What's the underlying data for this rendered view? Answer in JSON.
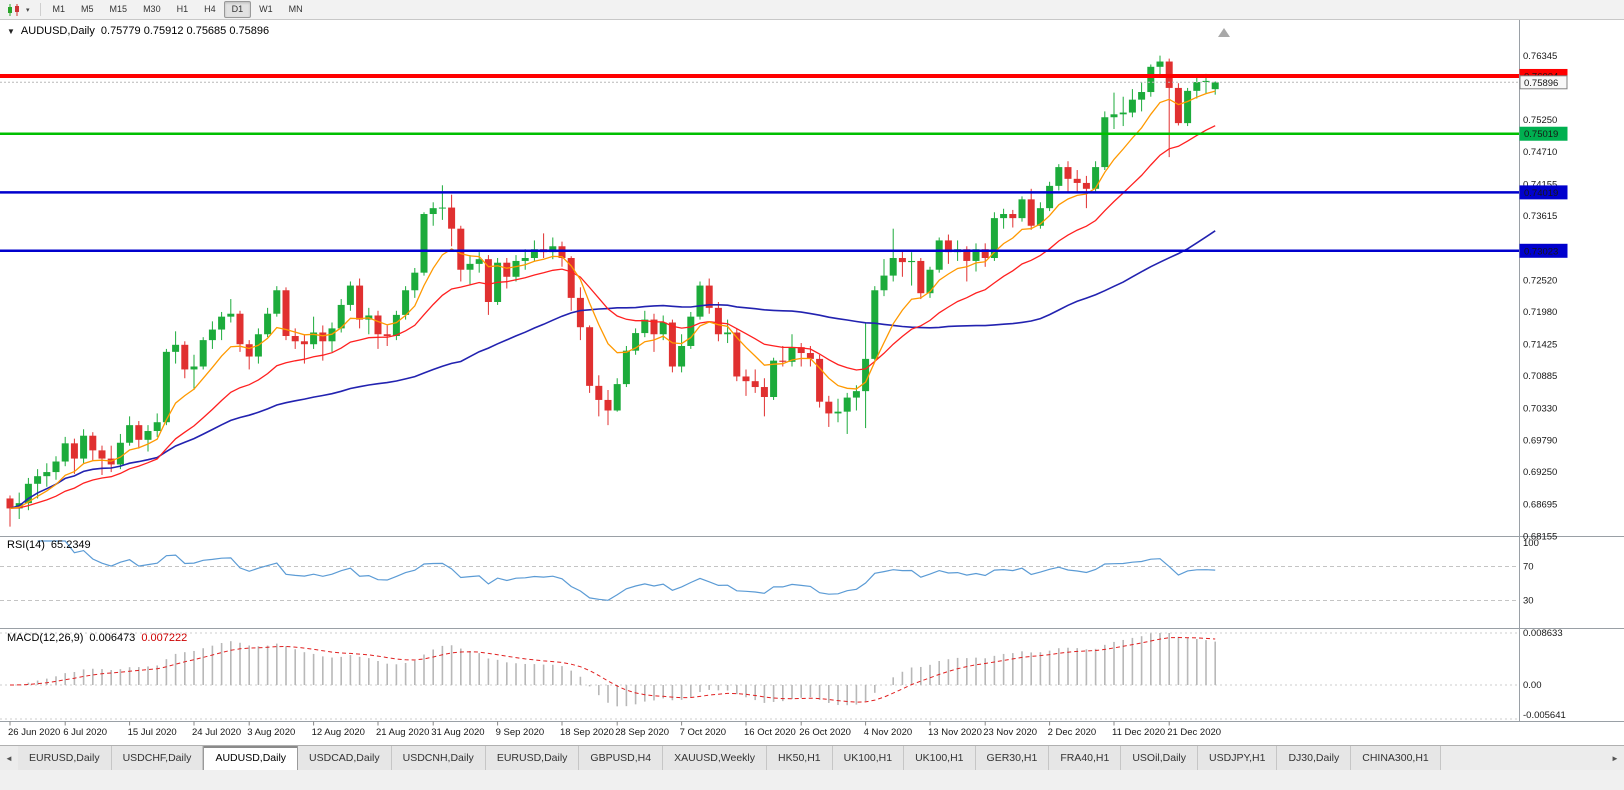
{
  "toolbar": {
    "dropdown_glyph": "▾",
    "timeframes": [
      "M1",
      "M5",
      "M15",
      "M30",
      "H1",
      "H4",
      "D1",
      "W1",
      "MN"
    ],
    "active_timeframe": "D1"
  },
  "chart_header": {
    "dropdown_arrow": "▼",
    "symbol": "AUDUSD,Daily",
    "ohlc": "0.75779 0.75912 0.75685 0.75896"
  },
  "panes": {
    "rsi_label": "RSI(14)",
    "rsi_value": "65.2349",
    "macd_label": "MACD(12,26,9)",
    "macd_main": "0.006473",
    "macd_signal": "0.007222"
  },
  "chart_data": {
    "type": "candlestick",
    "symbol": "AUDUSD",
    "timeframe": "Daily",
    "current_ohlc": [
      0.75779,
      0.75912,
      0.75685,
      0.75896
    ],
    "colors": {
      "bull": "#1cab3b",
      "bear": "#e03030"
    },
    "price_axis": {
      "min": 0.6816,
      "max": 0.7689,
      "labels": [
        "0.76345",
        "0.75250",
        "0.74710",
        "0.74155",
        "0.73615",
        "0.72520",
        "0.71980",
        "0.71425",
        "0.70885",
        "0.70330",
        "0.69790",
        "0.69250",
        "0.68695",
        "0.68155"
      ]
    },
    "badges": [
      {
        "value": 0.76004,
        "label": "0.76004",
        "bg": "#ff0000",
        "fg": "#ffffff"
      },
      {
        "value": 0.75896,
        "label": "0.75896",
        "bg": "#f8f8f8",
        "fg": "#000000",
        "border": "#808080"
      },
      {
        "value": 0.75019,
        "label": "0.75019",
        "bg": "#00b050",
        "fg": "#ffffff"
      },
      {
        "value": 0.74019,
        "label": "0.74019",
        "bg": "#0000cd",
        "fg": "#ffffff"
      },
      {
        "value": 0.73023,
        "label": "0.73023",
        "bg": "#0000cd",
        "fg": "#ffffff"
      }
    ],
    "hlines": [
      {
        "value": 0.76004,
        "color": "#ff0000",
        "width": 4
      },
      {
        "value": 0.75019,
        "color": "#00c000",
        "width": 2.5
      },
      {
        "value": 0.74019,
        "color": "#0000cd",
        "width": 2.5
      },
      {
        "value": 0.73023,
        "color": "#0000cd",
        "width": 2.5
      }
    ],
    "bid": {
      "value": 0.75896,
      "color": "#b8b8b8"
    },
    "moving_averages": [
      {
        "type": "sma",
        "period": 50,
        "color": "#2222b0",
        "width": 1.6
      },
      {
        "type": "ema",
        "period": 20,
        "color": "#ff2020",
        "width": 1.3
      },
      {
        "type": "ema",
        "period": 8,
        "color": "#ff9900",
        "width": 1.3
      }
    ],
    "rsi": {
      "period": 14,
      "current": 65.2349,
      "color": "#5b9bd5",
      "levels": [
        {
          "v": 100,
          "label": "100",
          "line": false
        },
        {
          "v": 70,
          "label": "70",
          "line": true
        },
        {
          "v": 30,
          "label": "30",
          "line": true
        }
      ]
    },
    "macd": {
      "fast": 12,
      "slow": 26,
      "signal": 9,
      "main_current": 0.006473,
      "signal_current": 0.007222,
      "hist_color": "#b8b8b8",
      "signal_color": "#e02020",
      "scale": {
        "max": 0.008633,
        "min": -0.005641
      },
      "axis_labels": [
        {
          "v": 0.008633,
          "label": "0.008633"
        },
        {
          "v": 0,
          "label": "0.00"
        },
        {
          "v": -0.005641,
          "label": "-0.005641"
        }
      ]
    },
    "x_labels": [
      {
        "label": "26 Jun 2020",
        "i": 0
      },
      {
        "label": "6 Jul 2020",
        "i": 6
      },
      {
        "label": "15 Jul 2020",
        "i": 13
      },
      {
        "label": "24 Jul 2020",
        "i": 20
      },
      {
        "label": "3 Aug 2020",
        "i": 26
      },
      {
        "label": "12 Aug 2020",
        "i": 33
      },
      {
        "label": "21 Aug 2020",
        "i": 40
      },
      {
        "label": "31 Aug 2020",
        "i": 46
      },
      {
        "label": "9 Sep 2020",
        "i": 53
      },
      {
        "label": "18 Sep 2020",
        "i": 60
      },
      {
        "label": "28 Sep 2020",
        "i": 66
      },
      {
        "label": "7 Oct 2020",
        "i": 73
      },
      {
        "label": "16 Oct 2020",
        "i": 80
      },
      {
        "label": "26 Oct 2020",
        "i": 86
      },
      {
        "label": "4 Nov 2020",
        "i": 93
      },
      {
        "label": "13 Nov 2020",
        "i": 100
      },
      {
        "label": "23 Nov 2020",
        "i": 106
      },
      {
        "label": "2 Dec 2020",
        "i": 113
      },
      {
        "label": "11 Dec 2020",
        "i": 120
      },
      {
        "label": "21 Dec 2020",
        "i": 126
      }
    ],
    "candles": [
      [
        0.688,
        0.6885,
        0.6832,
        0.6863
      ],
      [
        0.6863,
        0.689,
        0.6845,
        0.6872
      ],
      [
        0.6872,
        0.6915,
        0.686,
        0.6905
      ],
      [
        0.6905,
        0.693,
        0.688,
        0.6918
      ],
      [
        0.6918,
        0.694,
        0.69,
        0.6925
      ],
      [
        0.6925,
        0.6952,
        0.6912,
        0.6943
      ],
      [
        0.6943,
        0.6985,
        0.6935,
        0.6974
      ],
      [
        0.6974,
        0.6982,
        0.6922,
        0.6948
      ],
      [
        0.6948,
        0.6998,
        0.694,
        0.6987
      ],
      [
        0.6987,
        0.6993,
        0.6945,
        0.6962
      ],
      [
        0.6962,
        0.697,
        0.692,
        0.6948
      ],
      [
        0.6948,
        0.697,
        0.6925,
        0.6938
      ],
      [
        0.6938,
        0.699,
        0.693,
        0.6975
      ],
      [
        0.6975,
        0.702,
        0.697,
        0.7005
      ],
      [
        0.7005,
        0.7012,
        0.6965,
        0.698
      ],
      [
        0.698,
        0.7005,
        0.696,
        0.6995
      ],
      [
        0.6995,
        0.7025,
        0.6985,
        0.701
      ],
      [
        0.701,
        0.7135,
        0.7005,
        0.713
      ],
      [
        0.713,
        0.7165,
        0.711,
        0.7142
      ],
      [
        0.7142,
        0.7148,
        0.7085,
        0.71
      ],
      [
        0.71,
        0.7125,
        0.7065,
        0.7105
      ],
      [
        0.7105,
        0.7155,
        0.71,
        0.715
      ],
      [
        0.715,
        0.7182,
        0.7135,
        0.7168
      ],
      [
        0.7168,
        0.7198,
        0.715,
        0.719
      ],
      [
        0.719,
        0.722,
        0.718,
        0.7195
      ],
      [
        0.7195,
        0.72,
        0.713,
        0.7143
      ],
      [
        0.7143,
        0.715,
        0.71,
        0.7122
      ],
      [
        0.7122,
        0.717,
        0.711,
        0.716
      ],
      [
        0.716,
        0.7205,
        0.7155,
        0.7195
      ],
      [
        0.7195,
        0.7242,
        0.719,
        0.7235
      ],
      [
        0.7235,
        0.724,
        0.715,
        0.7157
      ],
      [
        0.7157,
        0.717,
        0.7135,
        0.7148
      ],
      [
        0.7148,
        0.716,
        0.711,
        0.7143
      ],
      [
        0.7143,
        0.719,
        0.7135,
        0.7163
      ],
      [
        0.7163,
        0.7175,
        0.7115,
        0.7148
      ],
      [
        0.7148,
        0.718,
        0.713,
        0.717
      ],
      [
        0.717,
        0.722,
        0.7163,
        0.721
      ],
      [
        0.721,
        0.725,
        0.72,
        0.7243
      ],
      [
        0.7243,
        0.7255,
        0.717,
        0.7185
      ],
      [
        0.7185,
        0.7205,
        0.716,
        0.7192
      ],
      [
        0.7192,
        0.72,
        0.7135,
        0.716
      ],
      [
        0.716,
        0.7175,
        0.714,
        0.7157
      ],
      [
        0.7157,
        0.72,
        0.715,
        0.7193
      ],
      [
        0.7193,
        0.7242,
        0.7185,
        0.7235
      ],
      [
        0.7235,
        0.7273,
        0.7222,
        0.7265
      ],
      [
        0.7265,
        0.7368,
        0.726,
        0.7365
      ],
      [
        0.7365,
        0.7385,
        0.7345,
        0.7375
      ],
      [
        0.7375,
        0.7414,
        0.7355,
        0.7376
      ],
      [
        0.7376,
        0.7398,
        0.731,
        0.734
      ],
      [
        0.734,
        0.7345,
        0.725,
        0.727
      ],
      [
        0.727,
        0.7295,
        0.7245,
        0.728
      ],
      [
        0.728,
        0.73,
        0.7265,
        0.7288
      ],
      [
        0.7288,
        0.7295,
        0.7193,
        0.7215
      ],
      [
        0.7215,
        0.729,
        0.721,
        0.7282
      ],
      [
        0.7282,
        0.729,
        0.7238,
        0.7258
      ],
      [
        0.7258,
        0.7295,
        0.725,
        0.7285
      ],
      [
        0.7285,
        0.7305,
        0.727,
        0.729
      ],
      [
        0.729,
        0.732,
        0.7285,
        0.7305
      ],
      [
        0.7305,
        0.7332,
        0.729,
        0.73
      ],
      [
        0.73,
        0.7325,
        0.7288,
        0.731
      ],
      [
        0.731,
        0.7318,
        0.7275,
        0.729
      ],
      [
        0.729,
        0.7293,
        0.72,
        0.7222
      ],
      [
        0.7222,
        0.724,
        0.715,
        0.7172
      ],
      [
        0.7172,
        0.7175,
        0.706,
        0.7072
      ],
      [
        0.7072,
        0.709,
        0.702,
        0.7048
      ],
      [
        0.7048,
        0.7065,
        0.7005,
        0.703
      ],
      [
        0.703,
        0.7085,
        0.7028,
        0.7075
      ],
      [
        0.7075,
        0.714,
        0.707,
        0.7132
      ],
      [
        0.7132,
        0.717,
        0.7125,
        0.7162
      ],
      [
        0.7162,
        0.72,
        0.7155,
        0.7185
      ],
      [
        0.7185,
        0.7195,
        0.713,
        0.716
      ],
      [
        0.716,
        0.7192,
        0.715,
        0.718
      ],
      [
        0.718,
        0.7185,
        0.7095,
        0.7105
      ],
      [
        0.7105,
        0.716,
        0.7095,
        0.714
      ],
      [
        0.714,
        0.7198,
        0.7135,
        0.719
      ],
      [
        0.719,
        0.725,
        0.7185,
        0.7243
      ],
      [
        0.7243,
        0.7255,
        0.7195,
        0.7205
      ],
      [
        0.7205,
        0.7215,
        0.7148,
        0.716
      ],
      [
        0.716,
        0.7185,
        0.7145,
        0.7163
      ],
      [
        0.7163,
        0.717,
        0.708,
        0.7088
      ],
      [
        0.7088,
        0.71,
        0.7055,
        0.708
      ],
      [
        0.708,
        0.71,
        0.706,
        0.707
      ],
      [
        0.707,
        0.7085,
        0.702,
        0.7053
      ],
      [
        0.7053,
        0.712,
        0.7048,
        0.7115
      ],
      [
        0.7115,
        0.714,
        0.7105,
        0.7113
      ],
      [
        0.7113,
        0.716,
        0.7105,
        0.7138
      ],
      [
        0.7138,
        0.7145,
        0.7105,
        0.7128
      ],
      [
        0.7128,
        0.714,
        0.7105,
        0.7118
      ],
      [
        0.7118,
        0.7125,
        0.7035,
        0.7045
      ],
      [
        0.7045,
        0.7055,
        0.7002,
        0.7025
      ],
      [
        0.7025,
        0.705,
        0.701,
        0.7028
      ],
      [
        0.7028,
        0.706,
        0.699,
        0.7052
      ],
      [
        0.7052,
        0.7073,
        0.703,
        0.7063
      ],
      [
        0.7063,
        0.718,
        0.7,
        0.7118
      ],
      [
        0.7118,
        0.7242,
        0.7115,
        0.7235
      ],
      [
        0.7235,
        0.7288,
        0.7225,
        0.726
      ],
      [
        0.726,
        0.734,
        0.725,
        0.729
      ],
      [
        0.729,
        0.7302,
        0.7258,
        0.7283
      ],
      [
        0.7283,
        0.73,
        0.7243,
        0.7285
      ],
      [
        0.7285,
        0.729,
        0.722,
        0.723
      ],
      [
        0.723,
        0.7275,
        0.7222,
        0.727
      ],
      [
        0.727,
        0.7325,
        0.7265,
        0.732
      ],
      [
        0.732,
        0.733,
        0.728,
        0.73
      ],
      [
        0.73,
        0.732,
        0.7285,
        0.7305
      ],
      [
        0.7305,
        0.731,
        0.725,
        0.7285
      ],
      [
        0.7285,
        0.7315,
        0.7267,
        0.7305
      ],
      [
        0.7305,
        0.7315,
        0.7275,
        0.729
      ],
      [
        0.729,
        0.7368,
        0.7285,
        0.7358
      ],
      [
        0.7358,
        0.7374,
        0.734,
        0.7365
      ],
      [
        0.7365,
        0.7372,
        0.7342,
        0.7358
      ],
      [
        0.7358,
        0.7395,
        0.7352,
        0.739
      ],
      [
        0.739,
        0.7408,
        0.7338,
        0.7345
      ],
      [
        0.7345,
        0.7385,
        0.734,
        0.7375
      ],
      [
        0.7375,
        0.742,
        0.737,
        0.7413
      ],
      [
        0.7413,
        0.745,
        0.7405,
        0.7445
      ],
      [
        0.7445,
        0.7455,
        0.74,
        0.7425
      ],
      [
        0.7425,
        0.744,
        0.74,
        0.7418
      ],
      [
        0.7418,
        0.743,
        0.7375,
        0.7408
      ],
      [
        0.7408,
        0.7455,
        0.74,
        0.7445
      ],
      [
        0.7445,
        0.754,
        0.744,
        0.753
      ],
      [
        0.753,
        0.7572,
        0.751,
        0.7535
      ],
      [
        0.7535,
        0.7565,
        0.7515,
        0.7538
      ],
      [
        0.7538,
        0.7578,
        0.753,
        0.756
      ],
      [
        0.756,
        0.759,
        0.754,
        0.7573
      ],
      [
        0.7573,
        0.762,
        0.7565,
        0.7616
      ],
      [
        0.7616,
        0.7635,
        0.76,
        0.7625
      ],
      [
        0.7625,
        0.763,
        0.7462,
        0.758
      ],
      [
        0.758,
        0.7588,
        0.7516,
        0.752
      ],
      [
        0.752,
        0.758,
        0.7515,
        0.7575
      ],
      [
        0.7575,
        0.76,
        0.7562,
        0.759
      ],
      [
        0.759,
        0.7604,
        0.757,
        0.7592
      ],
      [
        0.75779,
        0.75912,
        0.75685,
        0.75896
      ]
    ]
  },
  "tabs": {
    "left_arrow": "◄",
    "right_arrow": "►",
    "active_index": 2,
    "items": [
      "EURUSD,Daily",
      "USDCHF,Daily",
      "AUDUSD,Daily",
      "USDCAD,Daily",
      "USDCNH,Daily",
      "EURUSD,Daily",
      "GBPUSD,H4",
      "XAUUSD,Weekly",
      "HK50,H1",
      "UK100,H1",
      "UK100,H1",
      "GER30,H1",
      "FRA40,H1",
      "USOil,Daily",
      "USDJPY,H1",
      "DJ30,Daily",
      "CHINA300,H1"
    ]
  }
}
